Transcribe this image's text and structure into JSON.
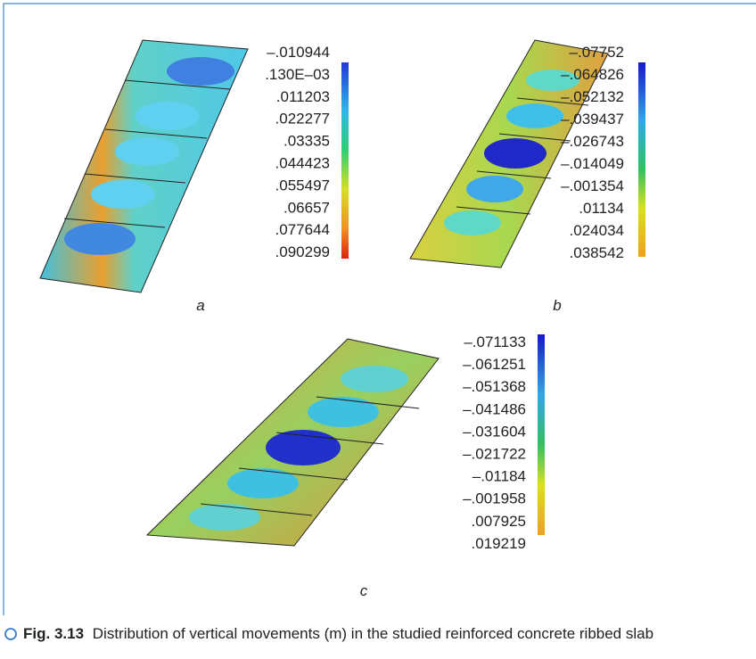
{
  "panels": [
    {
      "label": "a",
      "legend": [
        "–.010944",
        ".130E–03",
        ".011203",
        ".022277",
        ".03335",
        ".044423",
        ".055497",
        ".06657",
        ".077644",
        ".090299"
      ]
    },
    {
      "label": "b",
      "legend": [
        "–.07752",
        "–.064826",
        "–.052132",
        "–.039437",
        "–.026743",
        "–.014049",
        "–.001354",
        ".01134",
        ".024034",
        ".038542"
      ]
    },
    {
      "label": "c",
      "legend": [
        "–.071133",
        "–.061251",
        "–.051368",
        "–.041486",
        "–.031604",
        "–.021722",
        "–.01184",
        "–.001958",
        ".007925",
        ".019219"
      ]
    }
  ],
  "caption": {
    "number": "Fig. 3.13",
    "text": "Distribution of vertical movements (m) in the studied reinforced concrete ribbed slab"
  }
}
